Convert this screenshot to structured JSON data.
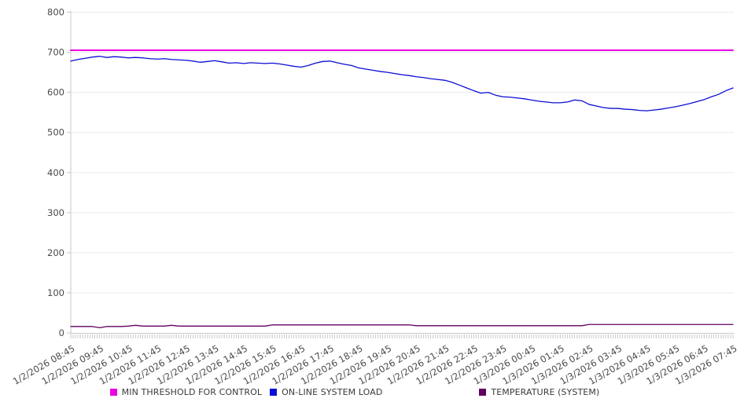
{
  "chart_data": {
    "type": "line",
    "title": "",
    "xlabel": "",
    "ylabel": "",
    "grid": true,
    "legend_position": "bottom",
    "y_axis": {
      "min": 0,
      "max": 800,
      "tick_step": 100,
      "tick_labels": [
        "0",
        "100",
        "200",
        "300",
        "400",
        "500",
        "600",
        "700",
        "800"
      ]
    },
    "x_axis": {
      "tick_labels": [
        "1/2/2026 08:45",
        "1/2/2026 09:45",
        "1/2/2026 10:45",
        "1/2/2026 11:45",
        "1/2/2026 12:45",
        "1/2/2026 13:45",
        "1/2/2026 14:45",
        "1/2/2026 15:45",
        "1/2/2026 16:45",
        "1/2/2026 17:45",
        "1/2/2026 18:45",
        "1/2/2026 19:45",
        "1/2/2026 20:45",
        "1/2/2026 21:45",
        "1/2/2026 22:45",
        "1/2/2026 23:45",
        "1/3/2026 00:45",
        "1/3/2026 01:45",
        "1/3/2026 02:45",
        "1/3/2026 03:45",
        "1/3/2026 04:45",
        "1/3/2026 05:45",
        "1/3/2026 06:45",
        "1/3/2026 07:45"
      ],
      "minor_ticks_per_labeled_interval": 12,
      "points_per_labeled_interval": 4
    },
    "series": [
      {
        "name": "MIN THRESHOLD FOR CONTROL",
        "color": "#ea00e0",
        "stroke_width": 2,
        "type": "constant",
        "value": 705
      },
      {
        "name": "ON-LINE SYSTEM LOAD",
        "color": "#0d0dd6",
        "stroke_width": 1.3,
        "type": "points",
        "values": [
          678,
          682,
          685,
          688,
          690,
          687,
          689,
          688,
          686,
          687,
          686,
          684,
          683,
          684,
          682,
          681,
          680,
          678,
          675,
          677,
          679,
          676,
          673,
          674,
          672,
          674,
          673,
          672,
          673,
          671,
          668,
          665,
          663,
          667,
          673,
          677,
          678,
          674,
          670,
          667,
          661,
          658,
          655,
          652,
          650,
          647,
          644,
          642,
          639,
          637,
          634,
          632,
          630,
          625,
          618,
          611,
          604,
          598,
          600,
          593,
          589,
          588,
          586,
          584,
          581,
          578,
          576,
          574,
          574,
          576,
          581,
          579,
          570,
          566,
          562,
          560,
          560,
          558,
          557,
          555,
          554,
          556,
          558,
          561,
          564,
          568,
          572,
          577,
          582,
          589,
          595,
          604,
          611
        ]
      },
      {
        "name": "TEMPERATURE (SYSTEM)",
        "color": "#620062",
        "stroke_width": 1.3,
        "type": "points",
        "values": [
          16,
          16,
          16,
          16,
          13,
          16,
          16,
          16,
          17,
          19,
          17,
          17,
          17,
          17,
          19,
          17,
          17,
          17,
          17,
          17,
          17,
          17,
          17,
          17,
          17,
          17,
          17,
          17,
          20,
          20,
          20,
          20,
          20,
          20,
          20,
          20,
          20,
          20,
          20,
          20,
          20,
          20,
          20,
          20,
          20,
          20,
          20,
          20,
          18,
          18,
          18,
          18,
          18,
          18,
          18,
          18,
          18,
          18,
          18,
          18,
          18,
          18,
          18,
          18,
          18,
          18,
          18,
          18,
          18,
          18,
          18,
          18,
          21,
          21,
          21,
          21,
          21,
          21,
          21,
          21,
          21,
          21,
          21,
          21,
          21,
          21,
          21,
          21,
          21,
          21,
          21,
          21,
          21
        ]
      }
    ]
  }
}
